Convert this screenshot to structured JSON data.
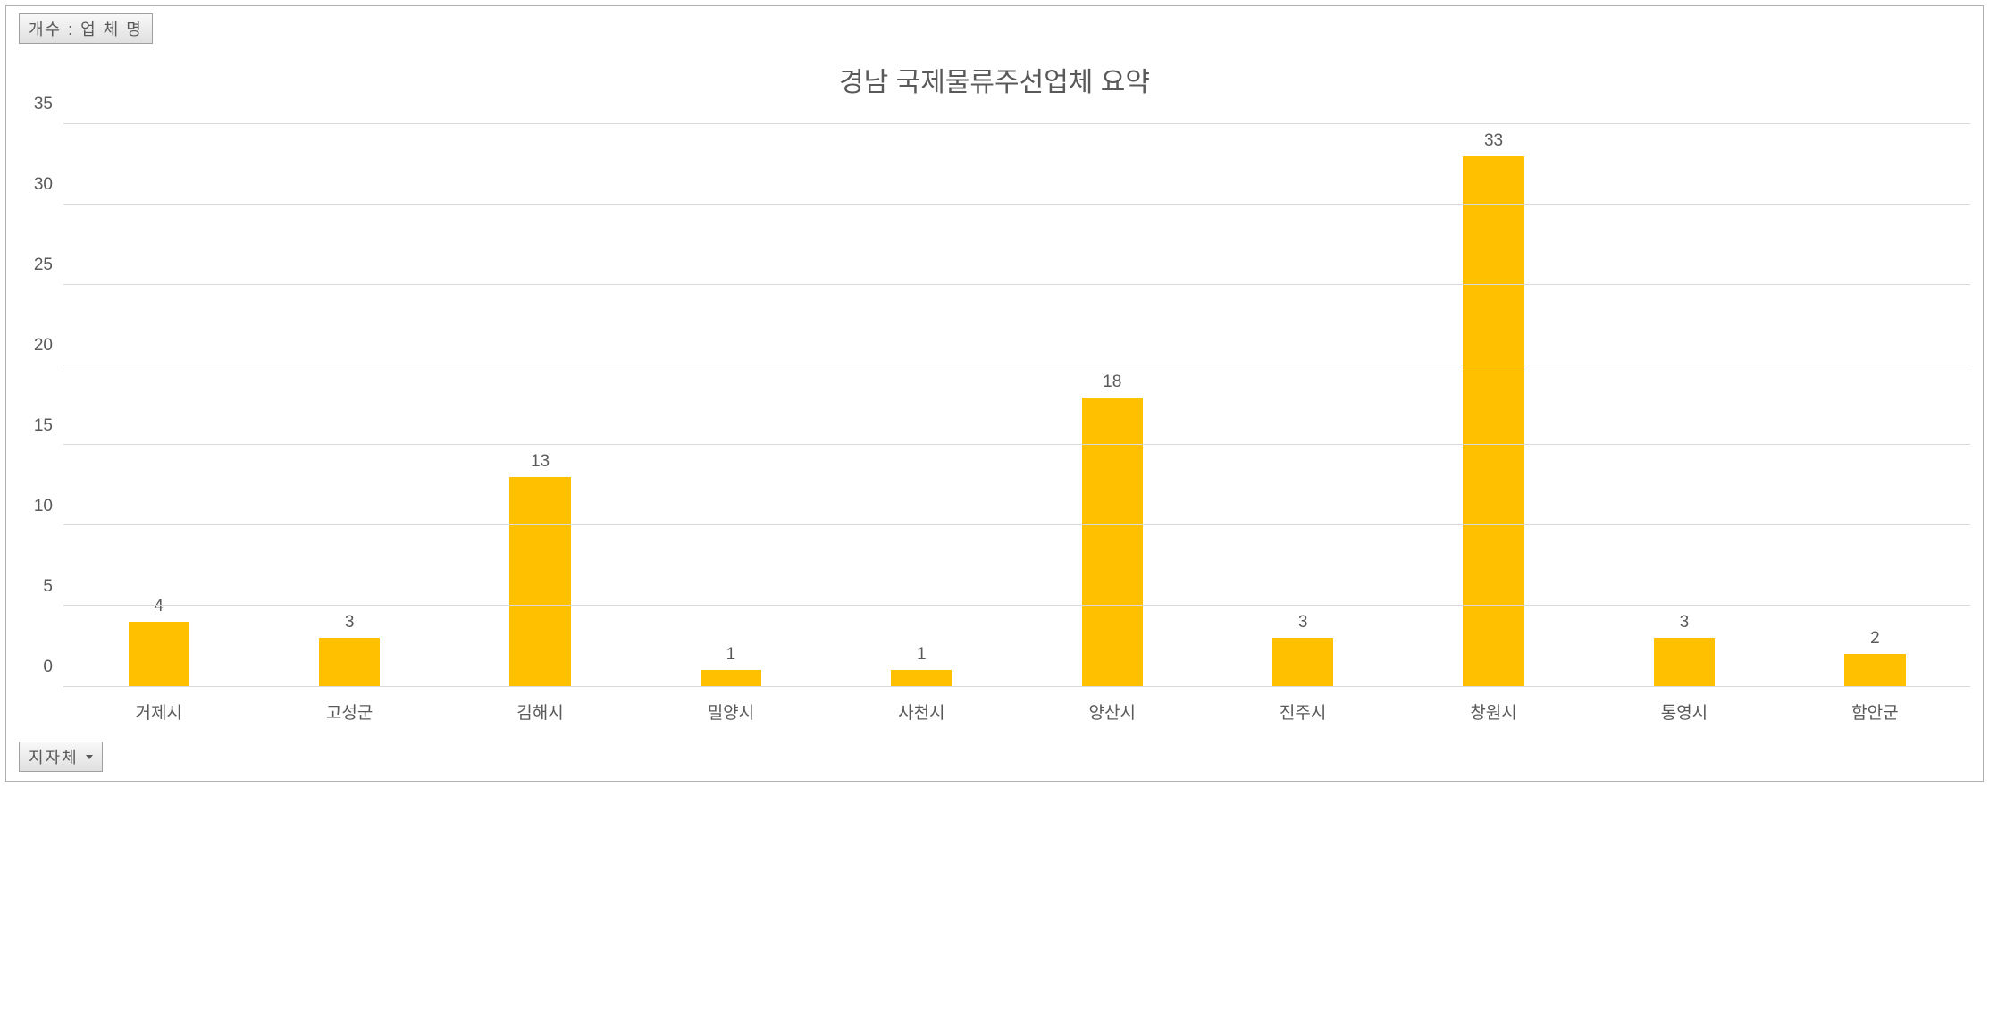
{
  "chart": {
    "type": "bar",
    "top_field_label": "개수 : 업 체 명",
    "bottom_field_label": "지자체",
    "title": "경남 국제물류주선업체 요약",
    "title_fontsize": 30,
    "title_color": "#595959",
    "categories": [
      "거제시",
      "고성군",
      "김해시",
      "밀양시",
      "사천시",
      "양산시",
      "진주시",
      "창원시",
      "통영시",
      "함안군"
    ],
    "values": [
      4,
      3,
      13,
      1,
      1,
      18,
      3,
      33,
      3,
      2
    ],
    "bar_color": "#ffc000",
    "ylim": [
      0,
      35
    ],
    "ytick_step": 5,
    "yticks": [
      0,
      5,
      10,
      15,
      20,
      25,
      30,
      35
    ],
    "axis_label_fontsize": 19,
    "axis_label_color": "#595959",
    "data_label_fontsize": 19,
    "data_label_color": "#595959",
    "grid_color": "#d9d9d9",
    "background_color": "#ffffff",
    "border_color": "#b0b0b0",
    "bar_width_ratio": 0.32,
    "field_button_bg_top": "#f8f8f8",
    "field_button_bg_bottom": "#e0e0e0",
    "field_button_border": "#a0a0a0"
  }
}
